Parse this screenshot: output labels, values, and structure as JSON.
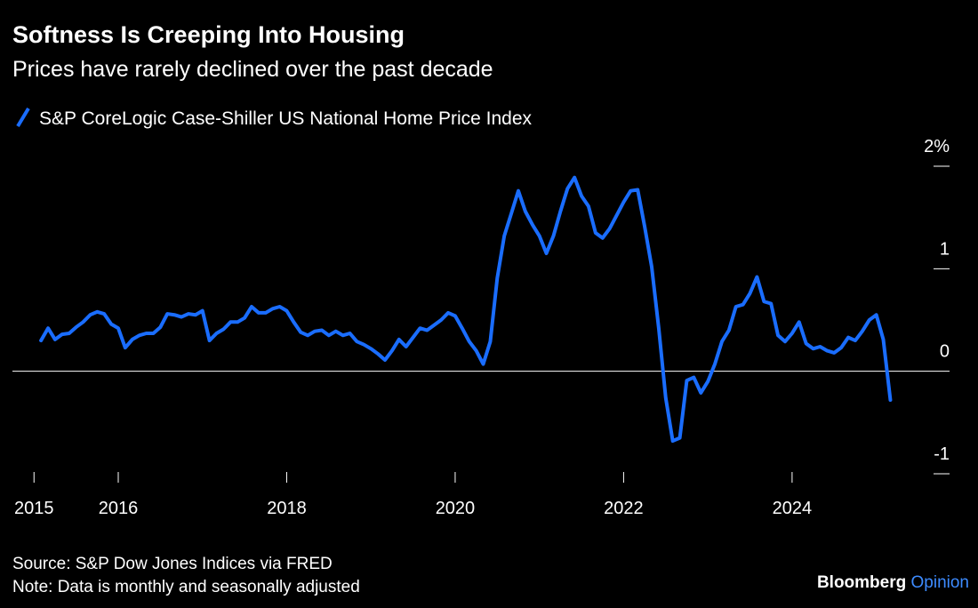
{
  "chart_data": {
    "type": "line",
    "title": "Softness Is Creeping Into Housing",
    "subtitle": "Prices have rarely declined over the past decade",
    "source": "Source: S&P Dow Jones Indices via FRED",
    "note": "Note: Data is monthly and seasonally adjusted",
    "credit": [
      "Bloomberg",
      "Opinion"
    ],
    "x": [
      2015.083,
      2015.167,
      2015.25,
      2015.333,
      2015.417,
      2015.5,
      2015.583,
      2015.667,
      2015.75,
      2015.833,
      2015.917,
      2016,
      2016.083,
      2016.167,
      2016.25,
      2016.333,
      2016.417,
      2016.5,
      2016.583,
      2016.667,
      2016.75,
      2016.833,
      2016.917,
      2017,
      2017.083,
      2017.167,
      2017.25,
      2017.333,
      2017.417,
      2017.5,
      2017.583,
      2017.667,
      2017.75,
      2017.833,
      2017.917,
      2018,
      2018.083,
      2018.167,
      2018.25,
      2018.333,
      2018.417,
      2018.5,
      2018.583,
      2018.667,
      2018.75,
      2018.833,
      2018.917,
      2019,
      2019.083,
      2019.167,
      2019.25,
      2019.333,
      2019.417,
      2019.5,
      2019.583,
      2019.667,
      2019.75,
      2019.833,
      2019.917,
      2020,
      2020.083,
      2020.167,
      2020.25,
      2020.333,
      2020.417,
      2020.5,
      2020.583,
      2020.667,
      2020.75,
      2020.833,
      2020.917,
      2021,
      2021.083,
      2021.167,
      2021.25,
      2021.333,
      2021.417,
      2021.5,
      2021.583,
      2021.667,
      2021.75,
      2021.833,
      2021.917,
      2022,
      2022.083,
      2022.167,
      2022.25,
      2022.333,
      2022.417,
      2022.5,
      2022.583,
      2022.667,
      2022.75,
      2022.833,
      2022.917,
      2023,
      2023.083,
      2023.167,
      2023.25,
      2023.333,
      2023.417,
      2023.5,
      2023.583,
      2023.667,
      2023.75,
      2023.833,
      2023.917,
      2024,
      2024.083,
      2024.167,
      2024.25,
      2024.333,
      2024.417,
      2024.5,
      2024.583,
      2024.667,
      2024.75,
      2024.833,
      2024.917,
      2025,
      2025.083,
      2025.167
    ],
    "series": [
      {
        "name": "S&P CoreLogic Case-Shiller US National Home Price Index",
        "color": "#1a6dff",
        "values": [
          0.3,
          0.42,
          0.31,
          0.36,
          0.37,
          0.43,
          0.48,
          0.55,
          0.58,
          0.56,
          0.46,
          0.42,
          0.23,
          0.31,
          0.35,
          0.37,
          0.37,
          0.43,
          0.56,
          0.55,
          0.53,
          0.56,
          0.55,
          0.59,
          0.3,
          0.37,
          0.41,
          0.48,
          0.48,
          0.52,
          0.63,
          0.57,
          0.57,
          0.61,
          0.63,
          0.59,
          0.48,
          0.38,
          0.35,
          0.39,
          0.4,
          0.35,
          0.39,
          0.35,
          0.37,
          0.29,
          0.26,
          0.22,
          0.17,
          0.11,
          0.2,
          0.31,
          0.24,
          0.33,
          0.42,
          0.4,
          0.45,
          0.5,
          0.57,
          0.54,
          0.42,
          0.29,
          0.2,
          0.07,
          0.29,
          0.91,
          1.32,
          1.54,
          1.76,
          1.56,
          1.43,
          1.32,
          1.15,
          1.32,
          1.56,
          1.78,
          1.89,
          1.71,
          1.61,
          1.35,
          1.3,
          1.39,
          1.52,
          1.65,
          1.76,
          1.77,
          1.41,
          1.02,
          0.42,
          -0.26,
          -0.68,
          -0.65,
          -0.09,
          -0.06,
          -0.21,
          -0.1,
          0.07,
          0.29,
          0.4,
          0.63,
          0.65,
          0.76,
          0.92,
          0.68,
          0.66,
          0.35,
          0.29,
          0.37,
          0.48,
          0.27,
          0.22,
          0.24,
          0.2,
          0.18,
          0.23,
          0.33,
          0.3,
          0.39,
          0.5,
          0.55,
          0.31,
          -0.28
        ]
      }
    ],
    "xlim": [
      2015,
      2025.5
    ],
    "xticks": [
      2015,
      2016,
      2018,
      2020,
      2022,
      2024
    ],
    "ylim": [
      -1,
      2
    ],
    "yticks": [
      {
        "value": 2,
        "label": "2%"
      },
      1,
      0,
      -1
    ],
    "grid": false
  }
}
